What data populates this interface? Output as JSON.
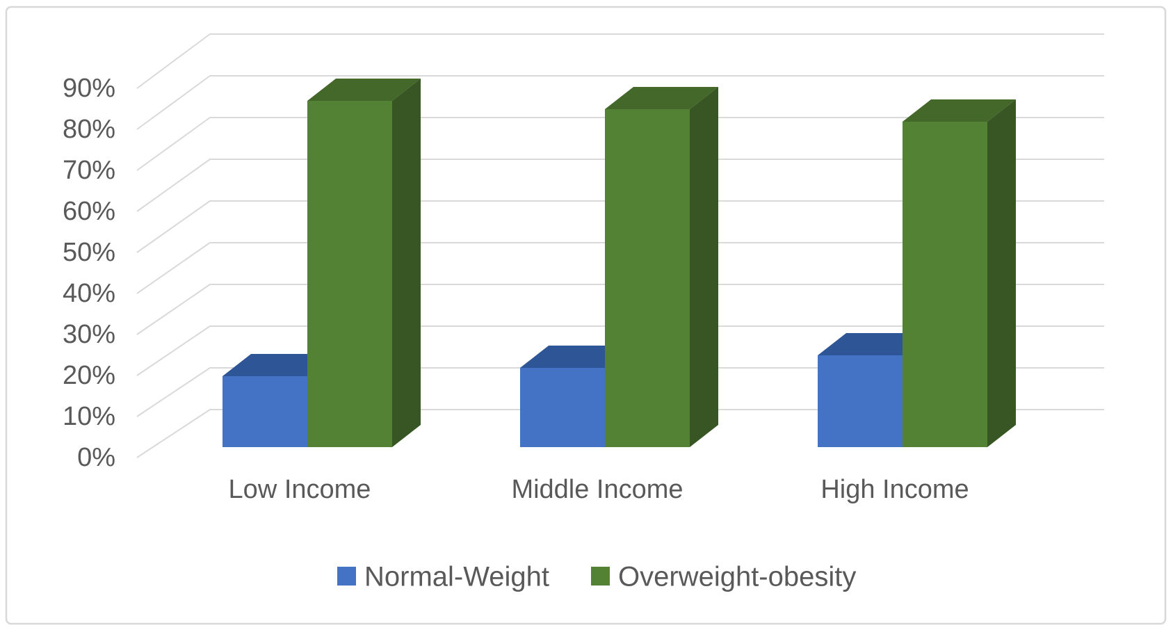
{
  "chart_data": {
    "type": "bar",
    "projection": "3d-clustered-column",
    "title": "",
    "xlabel": "",
    "ylabel": "",
    "categories": [
      "Low Income",
      "Middle Income",
      "High Income"
    ],
    "series": [
      {
        "name": "Normal-Weight",
        "color": "#4472C4",
        "top_color": "#2E5596",
        "side_color": "#29487F",
        "values": [
          17,
          19,
          22
        ]
      },
      {
        "name": "Overweight-obesity",
        "color": "#548235",
        "top_color": "#446829",
        "side_color": "#375623",
        "values": [
          83,
          81,
          78
        ]
      }
    ],
    "value_unit": "%",
    "ylim": [
      0,
      90
    ],
    "ytick_step": 10,
    "yticks": [
      "0%",
      "10%",
      "20%",
      "30%",
      "40%",
      "50%",
      "60%",
      "70%",
      "80%",
      "90%"
    ],
    "grid": "on",
    "legend_position": "bottom",
    "colors": {
      "axis_text": "#595959",
      "gridline": "#D9D9D9",
      "chart_border": "#D8D8D8",
      "background": "#FFFFFF"
    }
  }
}
